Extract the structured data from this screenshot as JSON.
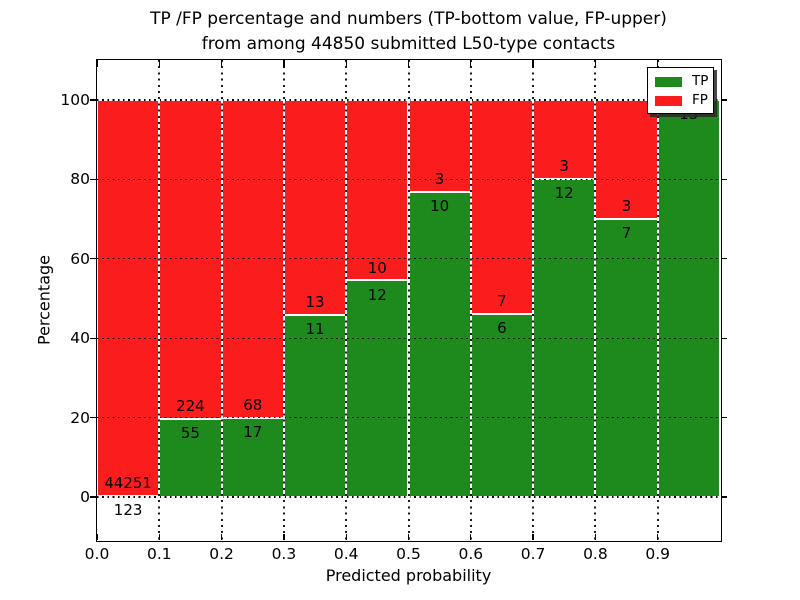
{
  "title": {
    "line1": "TP /FP percentage and numbers (TP-bottom value, FP-upper)",
    "line2": "from among 44850 submitted L50-type contacts"
  },
  "axes": {
    "xlabel": "Predicted probability",
    "ylabel": "Percentage",
    "x_ticks": [
      "0.0",
      "0.1",
      "0.2",
      "0.3",
      "0.4",
      "0.5",
      "0.6",
      "0.7",
      "0.8",
      "0.9"
    ],
    "y_ticks": [
      "0",
      "20",
      "40",
      "60",
      "80",
      "100"
    ]
  },
  "legend": {
    "position": "upper right",
    "items": [
      {
        "label": "TP",
        "color": "#1e8a1e"
      },
      {
        "label": "FP",
        "color": "#fb1d1d"
      }
    ]
  },
  "colors": {
    "tp": "#1e8a1e",
    "fp": "#fb1d1d",
    "grid": "#000000",
    "background": "#ffffff",
    "bar_edge": "#ffffff"
  },
  "chart_data": {
    "type": "bar",
    "stacked": true,
    "normalized_to_percent": true,
    "title": "TP /FP percentage and numbers (TP-bottom value, FP-upper) from among 44850 submitted L50-type contacts",
    "total_submitted": 44850,
    "xlabel": "Predicted probability",
    "ylabel": "Percentage",
    "xlim": [
      0.0,
      1.0
    ],
    "ylim": [
      0,
      100
    ],
    "grid": true,
    "bin_edges": [
      0.0,
      0.1,
      0.2,
      0.3,
      0.4,
      0.5,
      0.6,
      0.7,
      0.8,
      0.9,
      1.0
    ],
    "categories": [
      "0.0-0.1",
      "0.1-0.2",
      "0.2-0.3",
      "0.3-0.4",
      "0.4-0.5",
      "0.5-0.6",
      "0.6-0.7",
      "0.7-0.8",
      "0.8-0.9",
      "0.9-1.0"
    ],
    "series": [
      {
        "name": "TP",
        "color": "#1e8a1e",
        "values": [
          123,
          55,
          17,
          11,
          12,
          10,
          6,
          12,
          7,
          13
        ]
      },
      {
        "name": "FP",
        "color": "#fb1d1d",
        "values": [
          44251,
          224,
          68,
          13,
          10,
          3,
          7,
          3,
          3,
          null
        ]
      }
    ],
    "tp_percent": [
      0.28,
      19.71,
      20.0,
      45.83,
      54.55,
      76.92,
      46.15,
      80.0,
      70.0,
      100.0
    ],
    "annotation_note": "TP count drawn below the green/red boundary, FP count above it"
  }
}
